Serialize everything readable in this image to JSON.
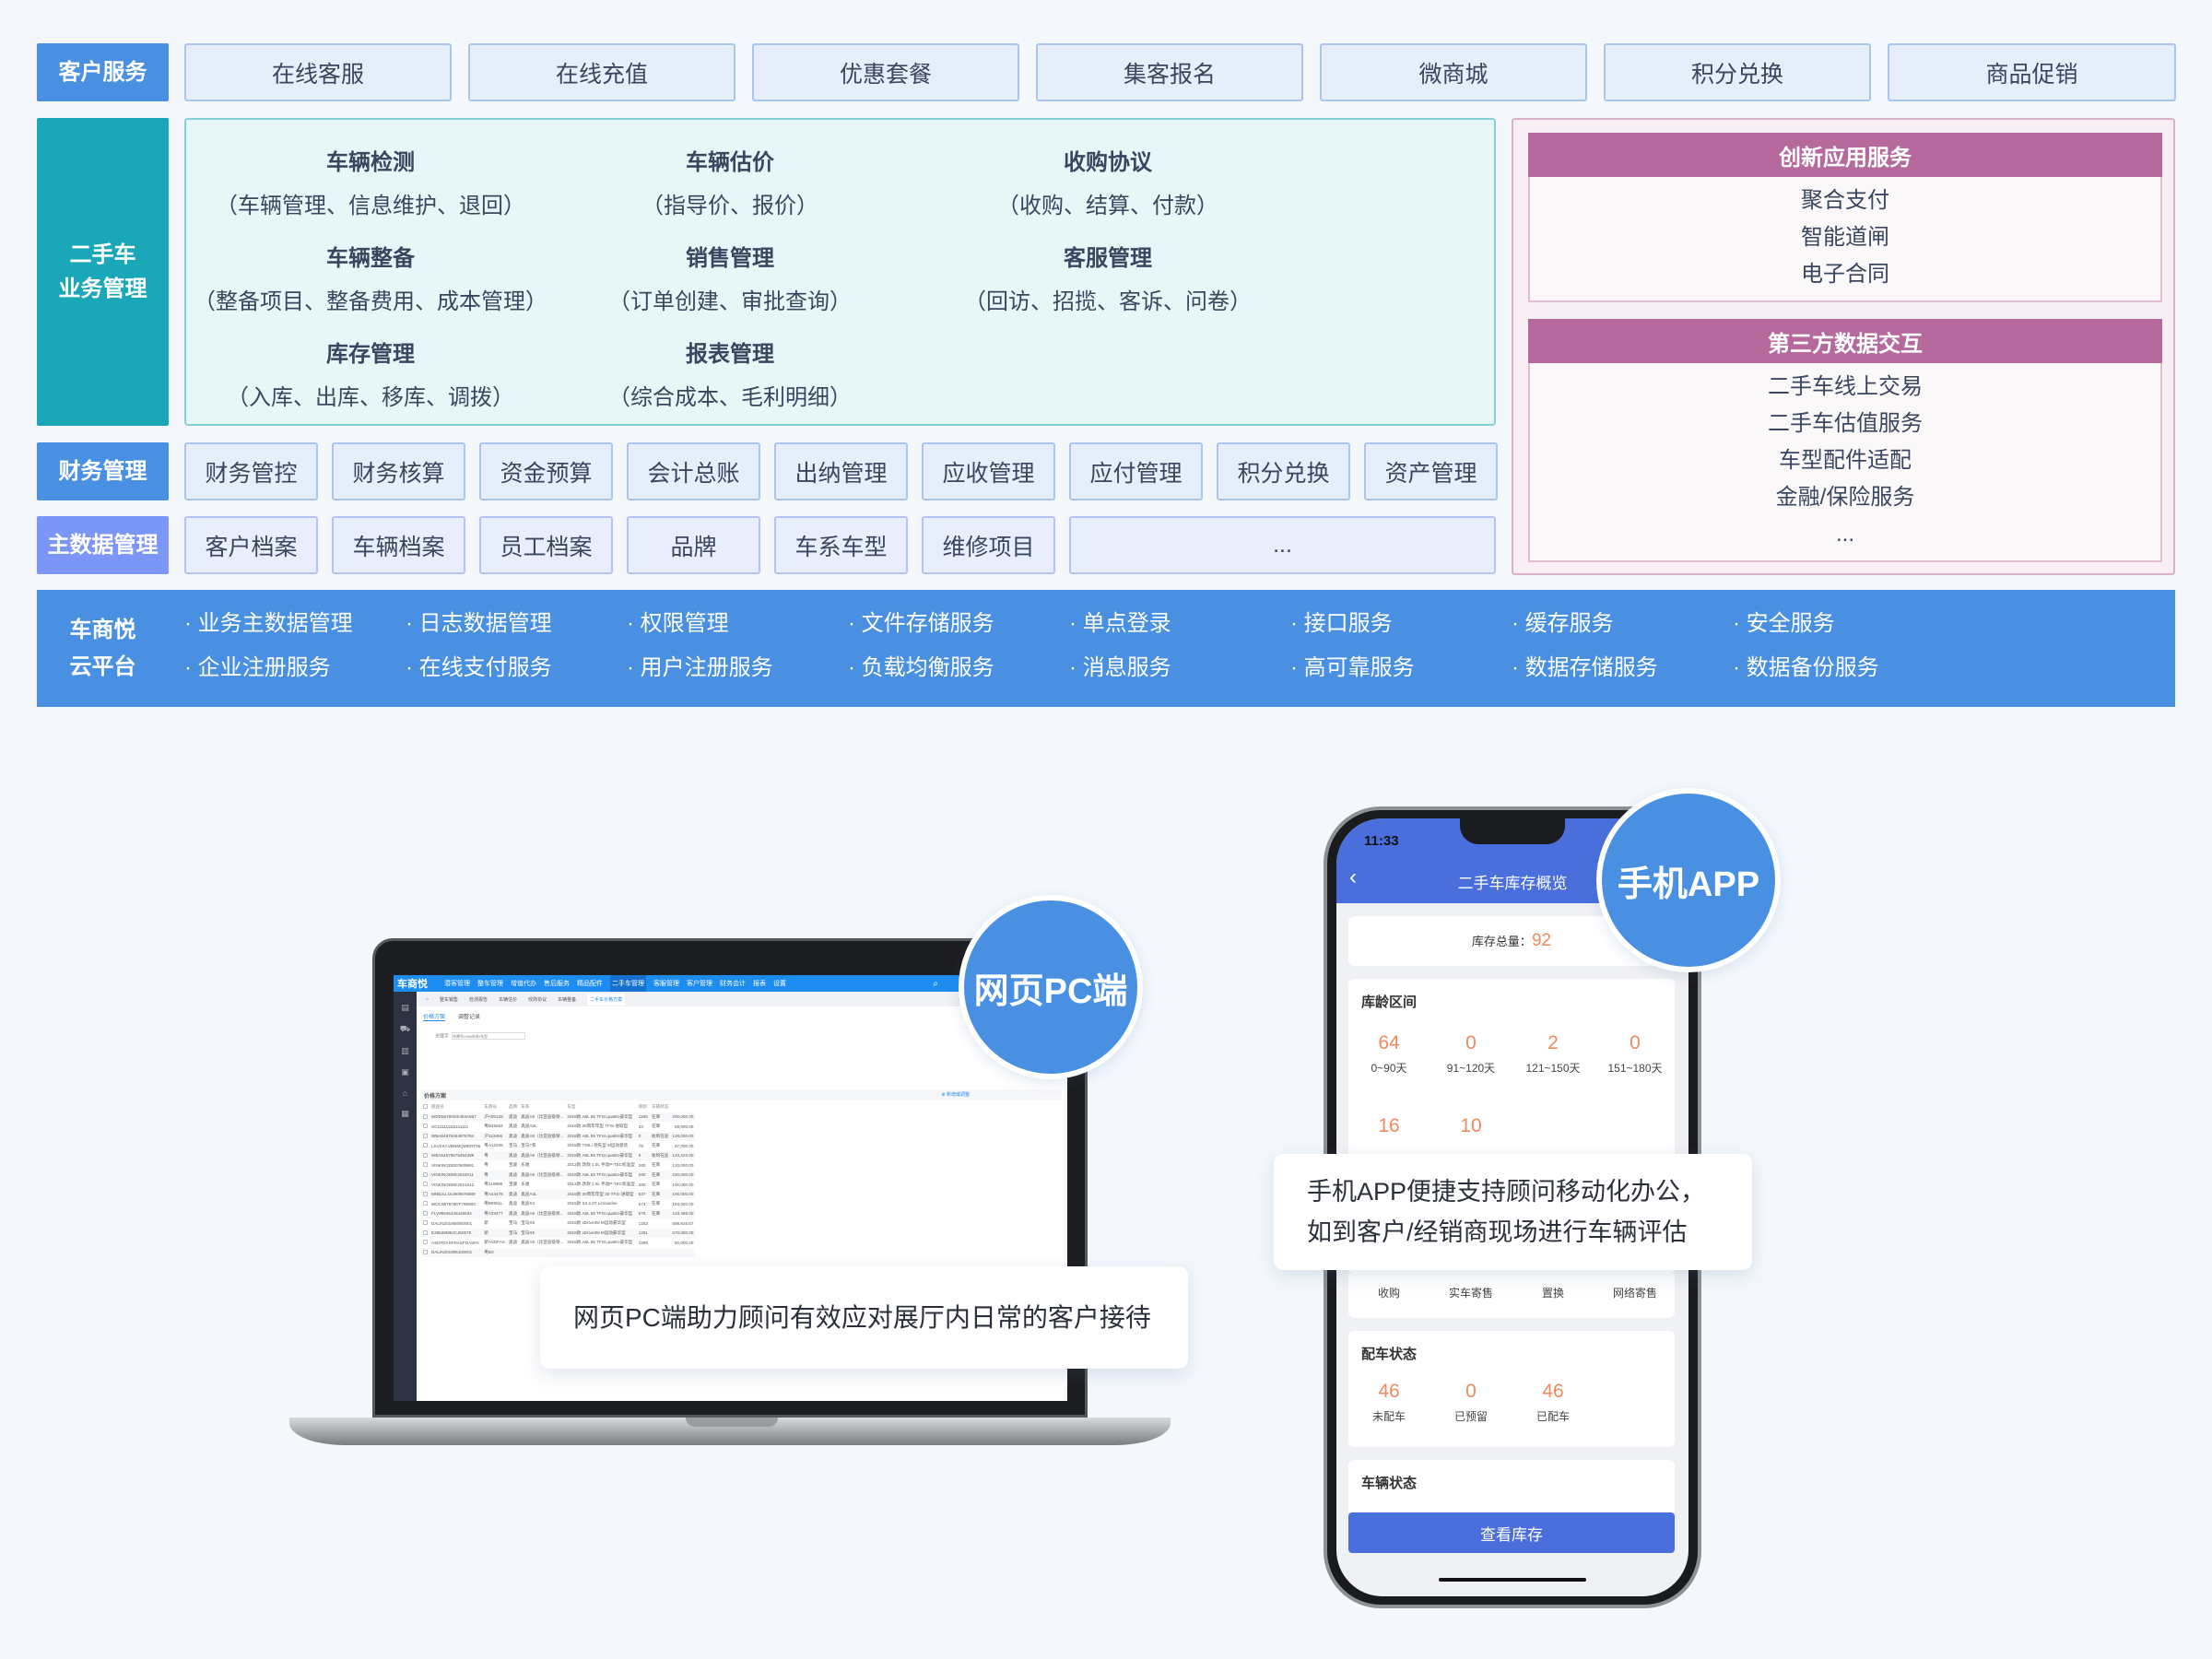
{
  "customer_service": {
    "label": "客户服务",
    "items": [
      "在线客服",
      "在线充值",
      "优惠套餐",
      "集客报名",
      "微商城",
      "积分兑换",
      "商品促销"
    ]
  },
  "used_car": {
    "label_line1": "二手车",
    "label_line2": "业务管理",
    "modules": [
      {
        "title": "车辆检测",
        "detail": "（车辆管理、信息维护、退回）"
      },
      {
        "title": "车辆估价",
        "detail": "（指导价、报价）"
      },
      {
        "title": "收购协议",
        "detail": "（收购、结算、付款）"
      },
      {
        "title": "车辆整备",
        "detail": "（整备项目、整备费用、成本管理）"
      },
      {
        "title": "销售管理",
        "detail": "（订单创建、审批查询）"
      },
      {
        "title": "客服管理",
        "detail": "（回访、招揽、客诉、问卷）"
      },
      {
        "title": "库存管理",
        "detail": "（入库、出库、移库、调拨）"
      },
      {
        "title": "报表管理",
        "detail": "（综合成本、毛利明细）"
      }
    ]
  },
  "finance": {
    "label": "财务管理",
    "items": [
      "财务管控",
      "财务核算",
      "资金预算",
      "会计总账",
      "出纳管理",
      "应收管理",
      "应付管理",
      "积分兑换",
      "资产管理"
    ]
  },
  "master_data": {
    "label": "主数据管理",
    "items": [
      "客户档案",
      "车辆档案",
      "员工档案",
      "品牌",
      "车系车型",
      "维修项目"
    ],
    "more": "..."
  },
  "innovation": {
    "title": "创新应用服务",
    "items": [
      "聚合支付",
      "智能道闸",
      "电子合同"
    ]
  },
  "third_party": {
    "title": "第三方数据交互",
    "items": [
      "二手车线上交易",
      "二手车估值服务",
      "车型配件适配",
      "金融/保险服务"
    ],
    "more": "..."
  },
  "cloud": {
    "label_line1": "车商悦",
    "label_line2": "云平台",
    "items": [
      "业务主数据管理",
      "日志数据管理",
      "权限管理",
      "文件存储服务",
      "单点登录",
      "接口服务",
      "缓存服务",
      "安全服务",
      "企业注册服务",
      "在线支付服务",
      "用户注册服务",
      "负载均衡服务",
      "消息服务",
      "高可靠服务",
      "数据存储服务",
      "数据备份服务"
    ]
  },
  "pc": {
    "bubble": "网页PC端",
    "caption": "网页PC端助力顾问有效应对展厅内日常的客户接待",
    "app": {
      "logo": "车商悦",
      "nav": [
        "潜客管理",
        "整车管理",
        "增值代办",
        "售后服务",
        "精品配件",
        "二手车管理",
        "客服管理",
        "客户管理",
        "财务会计",
        "报表",
        "设置"
      ],
      "tabs": [
        "整车销售",
        "检测报告",
        "车辆估价",
        "收购协议",
        "车辆整备",
        "二手车价格方案"
      ],
      "subtabs": [
        "价格方案",
        "调整记录"
      ],
      "keyword_label": "关键字",
      "keyword_placeholder": "车牌号/VIN/车系/车型",
      "section_title": "价格方案",
      "add_button": "新增或调整",
      "columns": [
        "底盘号",
        "车牌号",
        "品牌",
        "车系",
        "车型",
        "库龄",
        "车辆状态",
        ""
      ],
      "rows": [
        [
          "WDD56780GE453A867",
          "沪A00128",
          "奥迪",
          "奥迪A8（比亚迪级保...",
          "2018款 A8L 55 TFSI quattro豪华型",
          "1186",
          "在库",
          "200,000.00"
        ],
        [
          "SG111111111111111",
          "粤B45664",
          "奥迪",
          "奥迪A6L",
          "2018款 30周年年型 TFSI 进取型",
          "33",
          "在库",
          "89,000.00"
        ],
        [
          "WBA64876464876764",
          "沪123455",
          "奥迪",
          "奥迪A8（比亚迪级保...",
          "2018款 A8L 55 TFSI quattro豪华型",
          "0",
          "收购在途",
          "128,000.00"
        ],
        [
          "LSVZXCVBNMQWERT55",
          "粤A12345",
          "宝马",
          "宝马7系",
          "2018款 730Li 领先型 M运动套装",
          "78",
          "在库",
          "87,000.00"
        ],
        [
          "WBA54579675454399",
          "粤",
          "奥迪",
          "奥迪A8（比亚迪级保...",
          "2018款 A8L 55 TFSI quattro豪华型",
          "0",
          "收购在途",
          "123,333.00"
        ],
        [
          "VINKINGDEE0909991",
          "粤",
          "宝骏",
          "乐驰",
          "2012款 改款 1.0L 手动P-TEC标准型",
          "260",
          "在库",
          "120,000.00"
        ],
        [
          "VINKINGDEE2022011",
          "粤",
          "奥迪",
          "奥迪A8（比亚迪级保...",
          "2018款 A8L 55 TFSI quattro豪华型",
          "260",
          "在库",
          "230,000.00"
        ],
        [
          "VINKINGDEE2021042",
          "粤218899",
          "宝骏",
          "乐驰",
          "2012款 改款 1.0L 手动P-TEC标准型",
          "260",
          "在库",
          "100,000.00"
        ],
        [
          "MNBJLLOU908976589",
          "粤A44478",
          "奥迪",
          "奥迪A4L",
          "2018款 30周年年型 30 TFSI 进取型",
          "537",
          "在库",
          "100,000.00"
        ],
        [
          "WDC987876DF789900",
          "粤B890LL",
          "奥迪",
          "奥迪S3",
          "2015款 S3 2.0T Limousine",
          "574",
          "在库",
          "183,000.00"
        ],
        [
          "FLV99545436345634",
          "粤A33477",
          "奥迪",
          "奥迪A8（比亚迪级保...",
          "2018款 A8L 55 TFSI quattro豪华型",
          "578",
          "在库",
          "123,456.00"
        ],
        [
          "DALIN201908060001",
          "新",
          "宝马",
          "宝马X5",
          "2018款 xDrive35i M运动豪华型",
          "1253",
          "",
          "688,916.67"
        ],
        [
          "E39528M54CJ50578",
          "新",
          "宝马",
          "宝马X5",
          "2018款 xDrive35i M运动豪华型",
          "1251",
          "",
          "670,000.00"
        ],
        [
          "ASDFDASFDASFDASFA",
          "新ASDFAS",
          "奥迪",
          "奥迪A8（比亚迪级保...",
          "2018款 A8L 55 TFSI quattro豪华型",
          "1285",
          "",
          "60,000.00"
        ],
        [
          "DALIN201905100001",
          "粤BX",
          "",
          "",
          "",
          "",
          "",
          ""
        ]
      ]
    }
  },
  "mobile": {
    "bubble": "手机APP",
    "caption_line1": "手机APP便捷支持顾问移动化办公，",
    "caption_line2": "如到客户/经销商现场进行车辆评估",
    "app": {
      "time": "11:33",
      "title": "二手车库存概览",
      "total_label": "库存总量：",
      "total_value": "92",
      "age_title": "库龄区间",
      "age_stats": [
        {
          "value": "64",
          "label": "0~90天"
        },
        {
          "value": "0",
          "label": "91~120天"
        },
        {
          "value": "2",
          "label": "121~150天"
        },
        {
          "value": "0",
          "label": "151~180天"
        },
        {
          "value": "16",
          "label": ""
        },
        {
          "value": "10",
          "label": ""
        }
      ],
      "source_labels": [
        "收购",
        "实车寄售",
        "置换",
        "网络寄售"
      ],
      "match_title": "配车状态",
      "match_stats": [
        {
          "value": "46",
          "label": "未配车"
        },
        {
          "value": "0",
          "label": "已预留"
        },
        {
          "value": "46",
          "label": "已配车"
        }
      ],
      "vehicle_status_title": "车辆状态",
      "view_button": "查看库存"
    }
  },
  "colors": {
    "primary_blue": "#4a90e2",
    "teal": "#1aa8b8",
    "master_purple": "#7b96f7",
    "magenta": "#b5699c",
    "orange_value": "#ee8a5e",
    "app_blue": "#4a6fdc"
  }
}
